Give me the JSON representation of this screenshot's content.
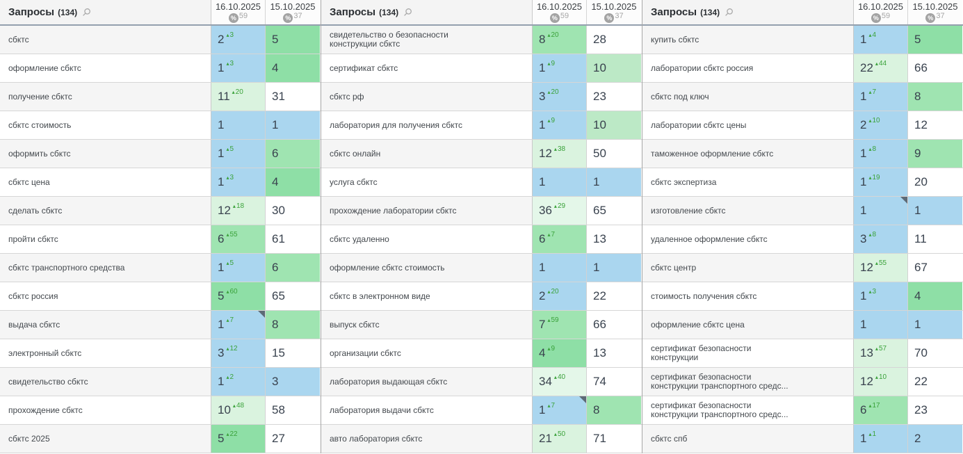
{
  "table_header": {
    "title": "Запросы",
    "count": "(134)",
    "search_icon": "magnifier-icon",
    "columns": [
      {
        "date": "16.10.2025",
        "percent_badge": "%",
        "percent_value": "59"
      },
      {
        "date": "15.10.2025",
        "percent_badge": "%",
        "percent_value": "37"
      }
    ]
  },
  "colors": {
    "blue": "#aad6ef",
    "green_top5": "#8edfa6",
    "green_top10": "#9fe4b1",
    "green_10": "#bce9c6",
    "light_green": "#daf3df",
    "very_light_green": "#e4f7e9",
    "white": "#ffffff",
    "delta_green": "#3aa23a",
    "note_marker": "#5d6a76",
    "header_border": "#94a0ae"
  },
  "groups": [
    {
      "rows": [
        {
          "query": "сбктс",
          "c1": {
            "v": "2",
            "d": "3",
            "bg": "blue"
          },
          "c2": {
            "v": "5",
            "bg": "green_top5"
          }
        },
        {
          "query": "оформление сбктс",
          "c1": {
            "v": "1",
            "d": "3",
            "bg": "blue"
          },
          "c2": {
            "v": "4",
            "bg": "green_top5"
          }
        },
        {
          "query": "получение сбктс",
          "c1": {
            "v": "11",
            "d": "20",
            "bg": "light_green"
          },
          "c2": {
            "v": "31",
            "bg": "white"
          }
        },
        {
          "query": "сбктс стоимость",
          "c1": {
            "v": "1",
            "bg": "blue"
          },
          "c2": {
            "v": "1",
            "bg": "blue"
          }
        },
        {
          "query": "оформить сбктс",
          "c1": {
            "v": "1",
            "d": "5",
            "bg": "blue"
          },
          "c2": {
            "v": "6",
            "bg": "green_top10"
          }
        },
        {
          "query": "сбктс цена",
          "c1": {
            "v": "1",
            "d": "3",
            "bg": "blue"
          },
          "c2": {
            "v": "4",
            "bg": "green_top5"
          }
        },
        {
          "query": "сделать сбктс",
          "c1": {
            "v": "12",
            "d": "18",
            "bg": "light_green"
          },
          "c2": {
            "v": "30",
            "bg": "white"
          }
        },
        {
          "query": "пройти сбктс",
          "c1": {
            "v": "6",
            "d": "55",
            "bg": "green_top10"
          },
          "c2": {
            "v": "61",
            "bg": "white"
          }
        },
        {
          "query": "сбктс транспортного средства",
          "c1": {
            "v": "1",
            "d": "5",
            "bg": "blue"
          },
          "c2": {
            "v": "6",
            "bg": "green_top10"
          }
        },
        {
          "query": "сбктс россия",
          "c1": {
            "v": "5",
            "d": "60",
            "bg": "green_top5"
          },
          "c2": {
            "v": "65",
            "bg": "white"
          }
        },
        {
          "query": "выдача сбктс",
          "c1": {
            "v": "1",
            "d": "7",
            "bg": "blue",
            "note": true
          },
          "c2": {
            "v": "8",
            "bg": "green_top10"
          }
        },
        {
          "query": "электронный сбктс",
          "c1": {
            "v": "3",
            "d": "12",
            "bg": "blue"
          },
          "c2": {
            "v": "15",
            "bg": "white"
          }
        },
        {
          "query": "свидетельство сбктс",
          "c1": {
            "v": "1",
            "d": "2",
            "bg": "blue"
          },
          "c2": {
            "v": "3",
            "bg": "blue"
          }
        },
        {
          "query": "прохождение сбктс",
          "c1": {
            "v": "10",
            "d": "48",
            "bg": "light_green"
          },
          "c2": {
            "v": "58",
            "bg": "white"
          }
        },
        {
          "query": "сбктс 2025",
          "c1": {
            "v": "5",
            "d": "22",
            "bg": "green_top5"
          },
          "c2": {
            "v": "27",
            "bg": "white"
          }
        }
      ]
    },
    {
      "rows": [
        {
          "query": "свидетельство о безопасности конструкции сбктс",
          "c1": {
            "v": "8",
            "d": "20",
            "bg": "green_top10"
          },
          "c2": {
            "v": "28",
            "bg": "white"
          }
        },
        {
          "query": "сертификат сбктс",
          "c1": {
            "v": "1",
            "d": "9",
            "bg": "blue"
          },
          "c2": {
            "v": "10",
            "bg": "green_10"
          }
        },
        {
          "query": "сбктс рф",
          "c1": {
            "v": "3",
            "d": "20",
            "bg": "blue"
          },
          "c2": {
            "v": "23",
            "bg": "white"
          }
        },
        {
          "query": "лаборатория для получения сбктс",
          "c1": {
            "v": "1",
            "d": "9",
            "bg": "blue"
          },
          "c2": {
            "v": "10",
            "bg": "green_10"
          }
        },
        {
          "query": "сбктс онлайн",
          "c1": {
            "v": "12",
            "d": "38",
            "bg": "light_green"
          },
          "c2": {
            "v": "50",
            "bg": "white"
          }
        },
        {
          "query": "услуга сбктс",
          "c1": {
            "v": "1",
            "bg": "blue"
          },
          "c2": {
            "v": "1",
            "bg": "blue"
          }
        },
        {
          "query": "прохождение лаборатории сбктс",
          "c1": {
            "v": "36",
            "d": "29",
            "bg": "very_light_green"
          },
          "c2": {
            "v": "65",
            "bg": "white"
          }
        },
        {
          "query": "сбктс удаленно",
          "c1": {
            "v": "6",
            "d": "7",
            "bg": "green_top10"
          },
          "c2": {
            "v": "13",
            "bg": "white"
          }
        },
        {
          "query": "оформление сбктс стоимость",
          "c1": {
            "v": "1",
            "bg": "blue"
          },
          "c2": {
            "v": "1",
            "bg": "blue"
          }
        },
        {
          "query": "сбктс в электронном виде",
          "c1": {
            "v": "2",
            "d": "20",
            "bg": "blue"
          },
          "c2": {
            "v": "22",
            "bg": "white"
          }
        },
        {
          "query": "выпуск сбктс",
          "c1": {
            "v": "7",
            "d": "59",
            "bg": "green_top10"
          },
          "c2": {
            "v": "66",
            "bg": "white"
          }
        },
        {
          "query": "организации сбктс",
          "c1": {
            "v": "4",
            "d": "9",
            "bg": "green_top5"
          },
          "c2": {
            "v": "13",
            "bg": "white"
          }
        },
        {
          "query": "лаборатория выдающая сбктс",
          "c1": {
            "v": "34",
            "d": "40",
            "bg": "very_light_green"
          },
          "c2": {
            "v": "74",
            "bg": "white"
          }
        },
        {
          "query": "лаборатория выдачи сбктс",
          "c1": {
            "v": "1",
            "d": "7",
            "bg": "blue",
            "note": true
          },
          "c2": {
            "v": "8",
            "bg": "green_top10"
          }
        },
        {
          "query": "авто лаборатория сбктс",
          "c1": {
            "v": "21",
            "d": "50",
            "bg": "light_green"
          },
          "c2": {
            "v": "71",
            "bg": "white"
          }
        }
      ]
    },
    {
      "rows": [
        {
          "query": "купить сбктс",
          "c1": {
            "v": "1",
            "d": "4",
            "bg": "blue"
          },
          "c2": {
            "v": "5",
            "bg": "green_top5"
          }
        },
        {
          "query": "лаборатории сбктс россия",
          "c1": {
            "v": "22",
            "d": "44",
            "bg": "light_green"
          },
          "c2": {
            "v": "66",
            "bg": "white"
          }
        },
        {
          "query": "сбктс под ключ",
          "c1": {
            "v": "1",
            "d": "7",
            "bg": "blue"
          },
          "c2": {
            "v": "8",
            "bg": "green_top10"
          }
        },
        {
          "query": "лаборатории сбктс цены",
          "c1": {
            "v": "2",
            "d": "10",
            "bg": "blue"
          },
          "c2": {
            "v": "12",
            "bg": "white"
          }
        },
        {
          "query": "таможенное оформление сбктс",
          "c1": {
            "v": "1",
            "d": "8",
            "bg": "blue"
          },
          "c2": {
            "v": "9",
            "bg": "green_top10"
          }
        },
        {
          "query": "сбктс экспертиза",
          "c1": {
            "v": "1",
            "d": "19",
            "bg": "blue"
          },
          "c2": {
            "v": "20",
            "bg": "white"
          }
        },
        {
          "query": "изготовление сбктс",
          "c1": {
            "v": "1",
            "bg": "blue",
            "note": true
          },
          "c2": {
            "v": "1",
            "bg": "blue"
          }
        },
        {
          "query": "удаленное оформление сбктс",
          "c1": {
            "v": "3",
            "d": "8",
            "bg": "blue"
          },
          "c2": {
            "v": "11",
            "bg": "white"
          }
        },
        {
          "query": "сбктс центр",
          "c1": {
            "v": "12",
            "d": "55",
            "bg": "light_green"
          },
          "c2": {
            "v": "67",
            "bg": "white"
          }
        },
        {
          "query": "стоимость получения сбктс",
          "c1": {
            "v": "1",
            "d": "3",
            "bg": "blue"
          },
          "c2": {
            "v": "4",
            "bg": "green_top5"
          }
        },
        {
          "query": "оформление сбктс цена",
          "c1": {
            "v": "1",
            "bg": "blue"
          },
          "c2": {
            "v": "1",
            "bg": "blue"
          }
        },
        {
          "query": "сертификат безопасности конструкции",
          "c1": {
            "v": "13",
            "d": "57",
            "bg": "light_green"
          },
          "c2": {
            "v": "70",
            "bg": "white"
          }
        },
        {
          "query": "сертификат безопасности конструкции транспортного средс...",
          "c1": {
            "v": "12",
            "d": "10",
            "bg": "light_green"
          },
          "c2": {
            "v": "22",
            "bg": "white"
          }
        },
        {
          "query": "сертификат безопасности конструкции транспортного средс...",
          "c1": {
            "v": "6",
            "d": "17",
            "bg": "green_top10"
          },
          "c2": {
            "v": "23",
            "bg": "white"
          }
        },
        {
          "query": "сбктс спб",
          "c1": {
            "v": "1",
            "d": "1",
            "bg": "blue"
          },
          "c2": {
            "v": "2",
            "bg": "blue"
          }
        }
      ]
    }
  ]
}
